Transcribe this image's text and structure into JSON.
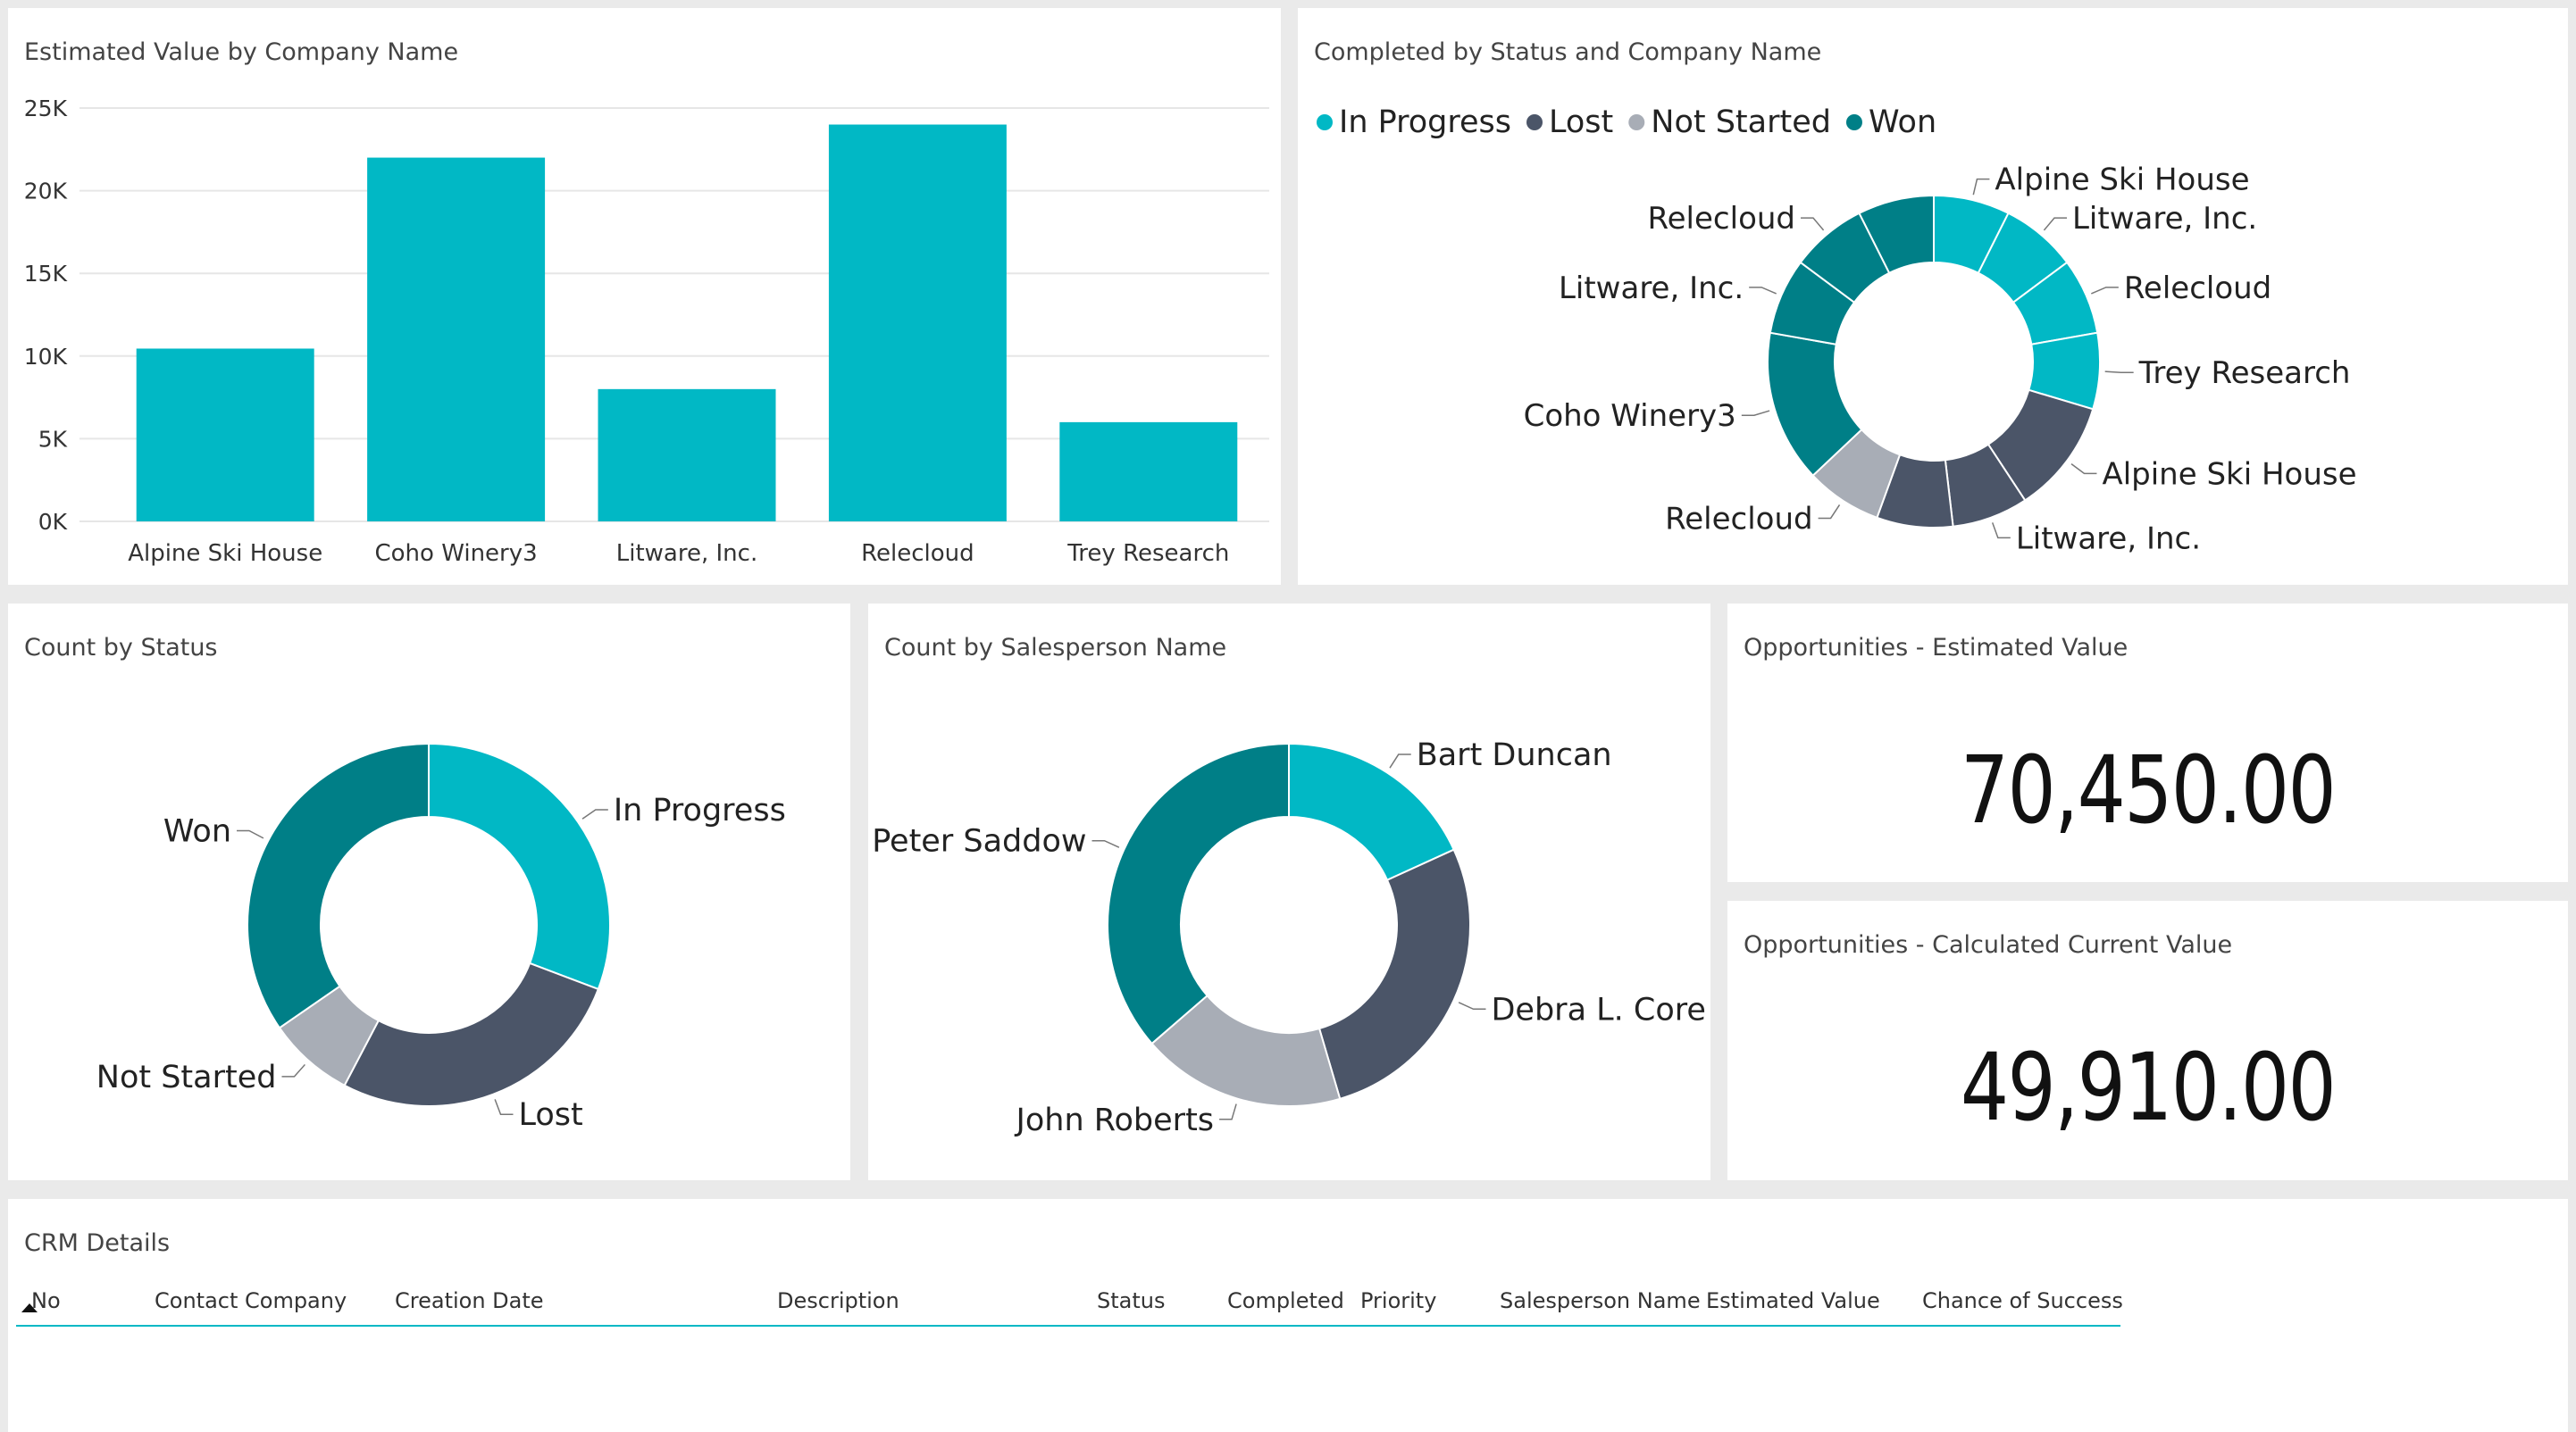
{
  "colors": {
    "in_progress": "#01b8c5",
    "lost": "#4b5568",
    "not_started": "#a8adb6",
    "won": "#007f87",
    "grid": "#e6e6e6",
    "axis_text": "#333333"
  },
  "tiles": {
    "bar_title": "Estimated Value by Company Name",
    "status_company_title": "Completed by Status and Company Name",
    "count_status_title": "Count by Status",
    "count_salesperson_title": "Count by Salesperson Name",
    "est_value_title": "Opportunities - Estimated Value",
    "calc_value_title": "Opportunities - Calculated Current Value",
    "crm_title": "CRM Details"
  },
  "cards": {
    "estimated_value": "70,450.00",
    "calculated_value": "49,910.00"
  },
  "crm_table": {
    "columns": [
      "No",
      "Contact Company",
      "Creation Date",
      "Description",
      "Status",
      "Completed",
      "Priority",
      "Salesperson Name",
      "Estimated Value",
      "Chance of Success"
    ],
    "sort_column": "No",
    "rows": []
  },
  "chart_data": [
    {
      "type": "bar",
      "title": "Estimated Value by Company Name",
      "categories": [
        "Alpine Ski House",
        "Coho Winery3",
        "Litware, Inc.",
        "Relecloud",
        "Trey Research"
      ],
      "values": [
        10450,
        22000,
        8000,
        24000,
        6000
      ],
      "ylim": [
        0,
        25000
      ],
      "yticks": [
        0,
        5000,
        10000,
        15000,
        20000,
        25000
      ],
      "ytick_labels": [
        "0K",
        "5K",
        "10K",
        "15K",
        "20K",
        "25K"
      ],
      "xlabel": "",
      "ylabel": "",
      "grid": true
    },
    {
      "type": "pie",
      "subtype": "donut",
      "title": "Completed by Status and Company Name",
      "legend": [
        "In Progress",
        "Lost",
        "Not Started",
        "Won"
      ],
      "legend_placement": "top-left",
      "slices": [
        {
          "label": "Alpine Ski House",
          "status": "In Progress",
          "value": 1
        },
        {
          "label": "Litware, Inc.",
          "status": "In Progress",
          "value": 1
        },
        {
          "label": "Relecloud",
          "status": "In Progress",
          "value": 1
        },
        {
          "label": "Trey Research",
          "status": "In Progress",
          "value": 1
        },
        {
          "label": "Alpine Ski House",
          "status": "Lost",
          "value": 1.5
        },
        {
          "label": "Litware, Inc.",
          "status": "Lost",
          "value": 1
        },
        {
          "label": "Litware, Inc.",
          "status": "Lost",
          "value": 1
        },
        {
          "label": "Relecloud",
          "status": "Not Started",
          "value": 1
        },
        {
          "label": "Coho Winery3",
          "status": "Won",
          "value": 2
        },
        {
          "label": "Litware, Inc.",
          "status": "Won",
          "value": 1
        },
        {
          "label": "Relecloud",
          "status": "Won",
          "value": 1
        },
        {
          "label": "Relecloud",
          "status": "Won",
          "value": 1
        }
      ],
      "visible_labels": [
        "Alpine Ski House",
        "Litware, Inc.",
        "Relecloud",
        "Trey Research",
        "Alpine Ski House",
        "Litware, Inc.",
        "Relecloud",
        "Coho Winery3",
        "Litware, Inc.",
        "Relecloud"
      ]
    },
    {
      "type": "pie",
      "subtype": "donut",
      "title": "Count by Status",
      "slices": [
        {
          "label": "In Progress",
          "value": 4
        },
        {
          "label": "Lost",
          "value": 3.5
        },
        {
          "label": "Not Started",
          "value": 1
        },
        {
          "label": "Won",
          "value": 4.5
        }
      ]
    },
    {
      "type": "pie",
      "subtype": "donut",
      "title": "Count by Salesperson Name",
      "slices": [
        {
          "label": "Bart Duncan",
          "value": 2
        },
        {
          "label": "Debra L. Core",
          "value": 3
        },
        {
          "label": "John Roberts",
          "value": 2
        },
        {
          "label": "Peter Saddow",
          "value": 4
        }
      ]
    }
  ]
}
